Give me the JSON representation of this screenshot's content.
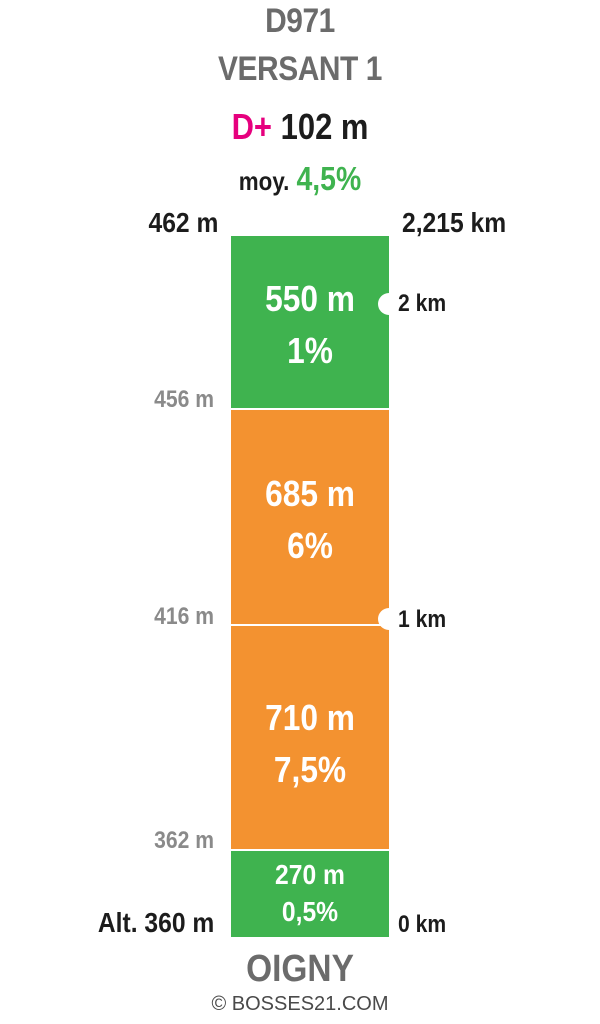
{
  "header": {
    "road": "D971",
    "side": "VERSANT 1",
    "gain_label": "D+",
    "gain_value": "102 m",
    "avg_label": "moy.",
    "avg_value": "4,5%"
  },
  "altitudes": {
    "top": "462 m",
    "a456": "456 m",
    "a416": "416 m",
    "a362": "362 m",
    "start": "Alt. 360 m"
  },
  "distances": {
    "total": "2,215 km",
    "km2": "2 km",
    "km1": "1 km",
    "km0": "0 km"
  },
  "segments": [
    {
      "length": "550 m",
      "grade": "1%",
      "color": "#3fb34f"
    },
    {
      "length": "685 m",
      "grade": "6%",
      "color": "#f39230"
    },
    {
      "length": "710 m",
      "grade": "7,5%",
      "color": "#f39230"
    },
    {
      "length": "270 m",
      "grade": "0,5%",
      "color": "#3fb34f"
    }
  ],
  "footer": {
    "place": "OIGNY",
    "copyright": "© BOSSES21.COM"
  },
  "colors": {
    "gain_accent": "#e6007e",
    "gentle": "#3fb34f",
    "steep": "#f39230"
  }
}
